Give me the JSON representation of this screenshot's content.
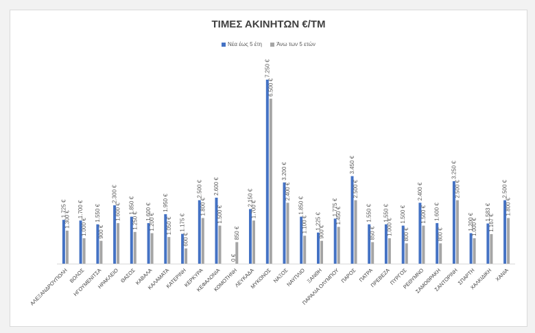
{
  "chart_data": {
    "type": "bar",
    "title": "ΤΙΜΕΣ ΑΚΙΝΗΤΩΝ €/ΤΜ",
    "xlabel": "",
    "ylabel": "",
    "ylim": [
      0,
      7500
    ],
    "legend_position": "top",
    "grid": false,
    "categories": [
      "ΑΛΕΞΑΝΔΡΟΥΠΟΛΗ",
      "ΒΟΛΟΣ",
      "ΗΓΟΥΜΕΝΙΤΣΑ",
      "ΗΡΑΚΛΕΙΟ",
      "ΘΑΣΟΣ",
      "ΚΑΒΑΛΑ",
      "ΚΑΛΑΜΑΤΑ",
      "ΚΑΤΕΡΙΝΗ",
      "ΚΕΡΚΥΡΑ",
      "ΚΕΦΑΛΟΝΙΑ",
      "ΚΟΜΟΤΗΝΗ",
      "ΛΕΥΚΑΔΑ",
      "ΜΥΚΟΝΟΣ",
      "ΝΑΞΟΣ",
      "ΝΑΥΠΛΙΟ",
      "ΞΑΝΘΗ",
      "ΠΑΡΑΛΙΑ ΟΛΥΜΠΟΥ",
      "ΠΑΡΟΣ",
      "ΠΑΤΡΑ",
      "ΠΡΕΒΕΖΑ",
      "ΠΥΡΓΟΣ",
      "ΡΕΘΥΜΝΟ",
      "ΣΑΜΟΘΡΑΚΗ",
      "ΣΑΝΤΟΡΙΝΗ",
      "ΣΠΑΡΤΗ",
      "ΧΑΛΚΙΔΙΚΗ",
      "ΧΑΝΙΑ"
    ],
    "series": [
      {
        "name": "Νέα έως 5 έτη",
        "color": "#4472c4",
        "values": [
          1725,
          1700,
          1550,
          2300,
          1850,
          1600,
          1950,
          1175,
          2500,
          2600,
          0,
          2150,
          7250,
          3200,
          1850,
          1225,
          1775,
          3450,
          1550,
          1550,
          1500,
          2400,
          1600,
          3250,
          1200,
          1583,
          2500
        ],
        "labels": [
          "1.725 €",
          "1.700 €",
          "1.550 €",
          "2.300 €",
          "1.850 €",
          "1.600 €",
          "1.950 €",
          "1.175 €",
          "2.500 €",
          "2.600 €",
          "0 €",
          "2.150 €",
          "7.250 €",
          "3.200 €",
          "1.850 €",
          "1.225 €",
          "1.775 €",
          "3.450 €",
          "1.550 €",
          "1.550 €",
          "1.500 €",
          "2.400 €",
          "1.600 €",
          "3.250 €",
          "1.200 €",
          "1.583 €",
          "2.500 €"
        ]
      },
      {
        "name": "Άνω των 5 ετών",
        "color": "#a5a5a5",
        "values": [
          1300,
          1000,
          900,
          1600,
          1250,
          1200,
          1050,
          600,
          1800,
          1500,
          850,
          1700,
          6500,
          2400,
          1100,
          900,
          1450,
          2500,
          850,
          1000,
          800,
          1500,
          800,
          2500,
          1000,
          1167,
          1800
        ],
        "labels": [
          "1.300 €",
          "1.000 €",
          "900 €",
          "1.600 €",
          "1.250 €",
          "1.200 €",
          "1.050 €",
          "600 €",
          "1.800 €",
          "1.500 €",
          "850 €",
          "1.700 €",
          "6.500 €",
          "2.400 €",
          "1.100 €",
          "900 €",
          "1.450 €",
          "2.500 €",
          "850 €",
          "1.000 €",
          "800 €",
          "1.500 €",
          "800 €",
          "2.500 €",
          "1.000 €",
          "1.167 €",
          "1.800 €"
        ]
      }
    ]
  }
}
